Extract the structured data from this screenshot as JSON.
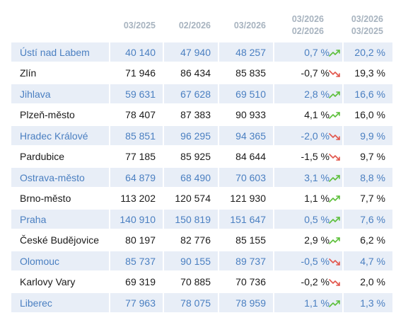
{
  "headers": {
    "col1": "03/2025",
    "col2": "02/2026",
    "col3": "03/2026",
    "col4_line1": "03/2026",
    "col4_line2": "02/2026",
    "col5_line1": "03/2026",
    "col5_line2": "03/2025"
  },
  "colors": {
    "alt_row_bg": "#e8eef7",
    "alt_row_text": "#4a7fc1",
    "header_text": "#a7b3bf",
    "trend_up": "#5cbf3a",
    "trend_down": "#e2564c"
  },
  "rows": [
    {
      "name": "Ústí nad Labem",
      "v1": "40 140",
      "v2": "47 940",
      "v3": "48 257",
      "change": "0,7 %",
      "trend": "up-icon",
      "share": "20,2 %"
    },
    {
      "name": "Zlín",
      "v1": "71 946",
      "v2": "86 434",
      "v3": "85 835",
      "change": "-0,7 %",
      "trend": "down-icon",
      "share": "19,3 %"
    },
    {
      "name": "Jihlava",
      "v1": "59 631",
      "v2": "67 628",
      "v3": "69 510",
      "change": "2,8 %",
      "trend": "up-icon",
      "share": "16,6 %"
    },
    {
      "name": "Plzeň-město",
      "v1": "78 407",
      "v2": "87 383",
      "v3": "90 933",
      "change": "4,1 %",
      "trend": "up-icon",
      "share": "16,0 %"
    },
    {
      "name": "Hradec Králové",
      "v1": "85 851",
      "v2": "96 295",
      "v3": "94 365",
      "change": "-2,0 %",
      "trend": "down-icon",
      "share": "9,9 %"
    },
    {
      "name": "Pardubice",
      "v1": "77 185",
      "v2": "85 925",
      "v3": "84 644",
      "change": "-1,5 %",
      "trend": "down-icon",
      "share": "9,7 %"
    },
    {
      "name": "Ostrava-město",
      "v1": "64 879",
      "v2": "68 490",
      "v3": "70 603",
      "change": "3,1 %",
      "trend": "up-icon",
      "share": "8,8 %"
    },
    {
      "name": "Brno-město",
      "v1": "113 202",
      "v2": "120 574",
      "v3": "121 930",
      "change": "1,1 %",
      "trend": "up-icon",
      "share": "7,7 %"
    },
    {
      "name": "Praha",
      "v1": "140 910",
      "v2": "150 819",
      "v3": "151 647",
      "change": "0,5 %",
      "trend": "up-icon",
      "share": "7,6 %"
    },
    {
      "name": "České Budějovice",
      "v1": "80 197",
      "v2": "82 776",
      "v3": "85 155",
      "change": "2,9 %",
      "trend": "up-icon",
      "share": "6,2 %"
    },
    {
      "name": "Olomouc",
      "v1": "85 737",
      "v2": "90 155",
      "v3": "89 737",
      "change": "-0,5 %",
      "trend": "down-icon",
      "share": "4,7 %"
    },
    {
      "name": "Karlovy Vary",
      "v1": "69 319",
      "v2": "70 885",
      "v3": "70 736",
      "change": "-0,2 %",
      "trend": "down-icon",
      "share": "2,0 %"
    },
    {
      "name": "Liberec",
      "v1": "77 963",
      "v2": "78 075",
      "v3": "78 959",
      "change": "1,1 %",
      "trend": "up-icon",
      "share": "1,3 %"
    }
  ]
}
